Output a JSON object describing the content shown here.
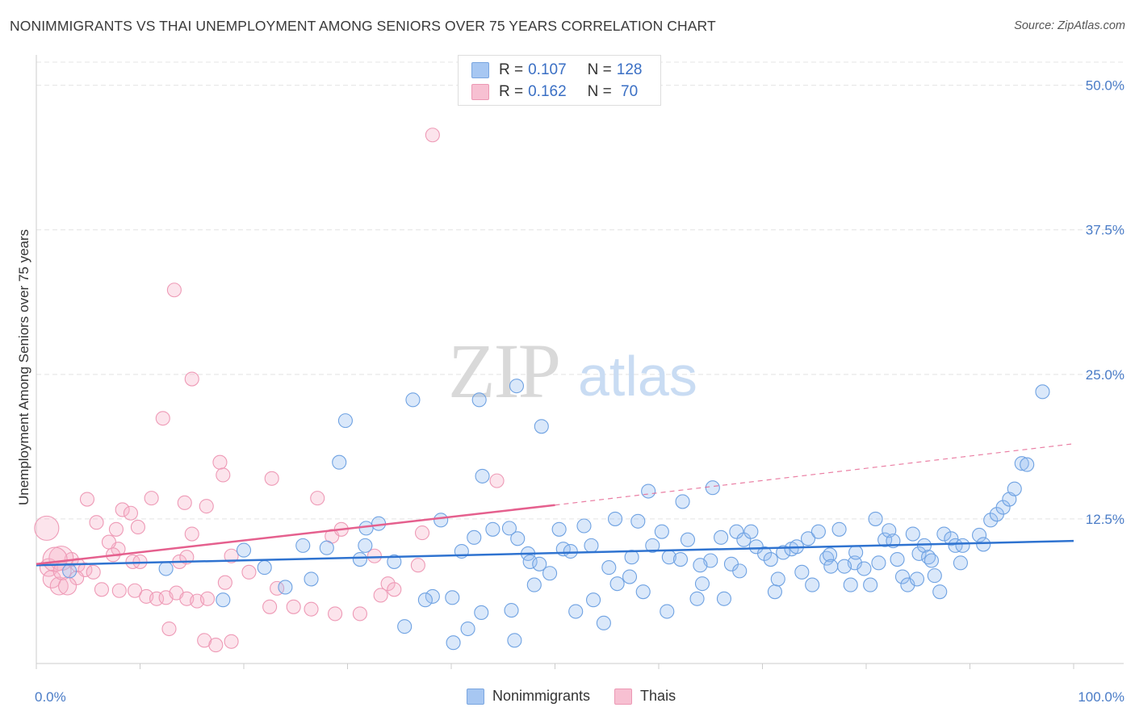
{
  "title": "NONIMMIGRANTS VS THAI UNEMPLOYMENT AMONG SENIORS OVER 75 YEARS CORRELATION CHART",
  "source": "Source: ZipAtlas.com",
  "watermark": {
    "zip": "ZIP",
    "atlas": "atlas"
  },
  "legend": {
    "rows": [
      {
        "r_label": "R = ",
        "r_value": "0.107",
        "n_label": "N = ",
        "n_value": "128",
        "color": "#a7c7f2",
        "border": "#7aa6e0"
      },
      {
        "r_label": "R = ",
        "r_value": "0.162",
        "n_label": "N = ",
        "n_value": " 70",
        "color": "#f7c0d2",
        "border": "#ec98b4"
      }
    ]
  },
  "bottom_legend": {
    "nonimmigrants": "Nonimmigrants",
    "thais": "Thais"
  },
  "colors": {
    "blue_fill": "rgba(150,190,240,0.35)",
    "blue_stroke": "#6fa2e2",
    "blue_line": "#2f73d0",
    "pink_fill": "rgba(246,178,200,0.35)",
    "pink_stroke": "#ee9ab6",
    "pink_line": "#e5608e",
    "grid": "#e4e4e4",
    "tick": "#4a7cc7"
  },
  "chart_data": {
    "type": "scatter",
    "title": "NONIMMIGRANTS VS THAI UNEMPLOYMENT AMONG SENIORS OVER 75 YEARS CORRELATION CHART",
    "xlabel": "",
    "ylabel": "Unemployment Among Seniors over 75 years",
    "xlim": [
      0,
      100
    ],
    "ylim": [
      0,
      52
    ],
    "x_tick_labels": [
      "0.0%",
      "100.0%"
    ],
    "y_ticks": [
      12.5,
      25.0,
      37.5,
      50.0
    ],
    "y_tick_labels": [
      "12.5%",
      "25.0%",
      "37.5%",
      "50.0%"
    ],
    "grid": true,
    "legend_position": "top-center",
    "series": [
      {
        "name": "Nonimmigrants",
        "r": 0.107,
        "n": 128,
        "trend": {
          "x0": 0,
          "y0": 8.5,
          "x1": 100,
          "y1": 10.6
        },
        "points": [
          [
            25.7,
            10.2
          ],
          [
            29.2,
            17.4
          ],
          [
            29.8,
            21
          ],
          [
            31.8,
            11.7
          ],
          [
            31.2,
            9
          ],
          [
            31.7,
            10.2
          ],
          [
            36.3,
            22.8
          ],
          [
            42.7,
            22.8
          ],
          [
            46.3,
            24
          ],
          [
            43.0,
            16.2
          ],
          [
            48.7,
            20.5
          ],
          [
            35.5,
            3.2
          ],
          [
            40.2,
            1.8
          ],
          [
            41.6,
            3
          ],
          [
            42.9,
            4.4
          ],
          [
            45.8,
            4.6
          ],
          [
            46.1,
            2
          ],
          [
            38.2,
            5.8
          ],
          [
            40.1,
            5.7
          ],
          [
            41.0,
            9.7
          ],
          [
            42.2,
            10.9
          ],
          [
            45.6,
            11.7
          ],
          [
            46.4,
            10.8
          ],
          [
            47.4,
            9.5
          ],
          [
            47.6,
            8.8
          ],
          [
            48.0,
            6.8
          ],
          [
            48.5,
            8.6
          ],
          [
            50.4,
            11.6
          ],
          [
            50.8,
            9.9
          ],
          [
            51.5,
            9.7
          ],
          [
            53.5,
            10.2
          ],
          [
            52.8,
            11.9
          ],
          [
            53.7,
            5.5
          ],
          [
            54.7,
            3.5
          ],
          [
            55.2,
            8.3
          ],
          [
            55.8,
            12.5
          ],
          [
            57.2,
            7.5
          ],
          [
            57.4,
            9.2
          ],
          [
            58.0,
            12.3
          ],
          [
            58.5,
            6.2
          ],
          [
            59.0,
            14.9
          ],
          [
            59.4,
            10.2
          ],
          [
            60.3,
            11.4
          ],
          [
            61.0,
            9.2
          ],
          [
            62.3,
            14
          ],
          [
            62.1,
            9
          ],
          [
            62.8,
            10.7
          ],
          [
            63.7,
            5.6
          ],
          [
            64.2,
            6.9
          ],
          [
            65.0,
            8.9
          ],
          [
            65.2,
            15.2
          ],
          [
            66.0,
            10.9
          ],
          [
            66.3,
            5.6
          ],
          [
            67.0,
            8.6
          ],
          [
            67.5,
            11.4
          ],
          [
            68.2,
            10.7
          ],
          [
            68.9,
            11.4
          ],
          [
            69.4,
            10.1
          ],
          [
            70.2,
            9.5
          ],
          [
            70.8,
            9.0
          ],
          [
            71.2,
            6.2
          ],
          [
            72.0,
            9.6
          ],
          [
            72.8,
            9.9
          ],
          [
            73.3,
            10.1
          ],
          [
            74.4,
            10.8
          ],
          [
            74.8,
            6.8
          ],
          [
            75.4,
            11.4
          ],
          [
            76.2,
            9.1
          ],
          [
            76.5,
            9.4
          ],
          [
            76.6,
            8.4
          ],
          [
            77.4,
            11.6
          ],
          [
            78.5,
            6.8
          ],
          [
            78.9,
            8.7
          ],
          [
            79.0,
            9.6
          ],
          [
            79.8,
            8.2
          ],
          [
            80.4,
            6.8
          ],
          [
            80.9,
            12.5
          ],
          [
            81.8,
            10.7
          ],
          [
            82.2,
            11.5
          ],
          [
            82.6,
            10.6
          ],
          [
            83.5,
            7.5
          ],
          [
            84.0,
            6.8
          ],
          [
            84.5,
            11.2
          ],
          [
            85.1,
            9.5
          ],
          [
            85.6,
            10.2
          ],
          [
            86.0,
            9.2
          ],
          [
            86.3,
            8.9
          ],
          [
            86.6,
            7.6
          ],
          [
            87.5,
            11.2
          ],
          [
            88.2,
            10.8
          ],
          [
            88.6,
            10.2
          ],
          [
            89.1,
            8.7
          ],
          [
            89.3,
            10.2
          ],
          [
            90.9,
            11.1
          ],
          [
            91.3,
            10.3
          ],
          [
            92.0,
            12.4
          ],
          [
            92.6,
            12.9
          ],
          [
            93.2,
            13.5
          ],
          [
            93.8,
            14.2
          ],
          [
            94.3,
            15.1
          ],
          [
            95.0,
            17.3
          ],
          [
            95.5,
            17.2
          ],
          [
            97.0,
            23.5
          ],
          [
            3.2,
            8
          ],
          [
            12.5,
            8.2
          ],
          [
            18.0,
            5.5
          ],
          [
            20.0,
            9.8
          ],
          [
            22.0,
            8.3
          ],
          [
            24.0,
            6.6
          ],
          [
            26.5,
            7.3
          ],
          [
            28.0,
            10.0
          ],
          [
            33.0,
            12.1
          ],
          [
            34.5,
            8.8
          ],
          [
            37.5,
            5.5
          ],
          [
            39.0,
            12.4
          ],
          [
            44.0,
            11.6
          ],
          [
            49.5,
            7.8
          ],
          [
            52.0,
            4.5
          ],
          [
            56.0,
            6.9
          ],
          [
            60.8,
            4.5
          ],
          [
            64.0,
            8.5
          ],
          [
            67.8,
            8.0
          ],
          [
            71.5,
            7.3
          ],
          [
            73.8,
            7.9
          ],
          [
            77.9,
            8.4
          ],
          [
            81.2,
            8.7
          ],
          [
            83.0,
            9.0
          ],
          [
            84.9,
            7.3
          ],
          [
            87.1,
            6.2
          ]
        ]
      },
      {
        "name": "Thais",
        "r": 0.162,
        "n": 70,
        "trend": {
          "x0": 0,
          "y0": 8.6,
          "x1": 50,
          "y1": 13.7,
          "dash_x1": 100,
          "dash_y1": 19.0
        },
        "points": [
          [
            38.2,
            45.7
          ],
          [
            13.3,
            32.3
          ],
          [
            15.0,
            24.6
          ],
          [
            12.2,
            21.2
          ],
          [
            17.7,
            17.4
          ],
          [
            18.0,
            16.3
          ],
          [
            22.7,
            16.0
          ],
          [
            44.4,
            15.8
          ],
          [
            27.1,
            14.3
          ],
          [
            4.9,
            14.2
          ],
          [
            11.1,
            14.3
          ],
          [
            14.3,
            13.9
          ],
          [
            16.4,
            13.6
          ],
          [
            8.3,
            13.3
          ],
          [
            9.1,
            13.0
          ],
          [
            7.9,
            9.9
          ],
          [
            9.8,
            11.8
          ],
          [
            7.7,
            11.6
          ],
          [
            15.0,
            11.2
          ],
          [
            28.5,
            11.0
          ],
          [
            37.2,
            11.3
          ],
          [
            7.0,
            10.5
          ],
          [
            7.4,
            9.4
          ],
          [
            3.4,
            9.0
          ],
          [
            4.0,
            8.5
          ],
          [
            4.7,
            8.1
          ],
          [
            5.5,
            7.9
          ],
          [
            1.2,
            8.3
          ],
          [
            2.4,
            9.1
          ],
          [
            1.5,
            7.3
          ],
          [
            6.3,
            6.4
          ],
          [
            8.0,
            6.3
          ],
          [
            9.5,
            6.3
          ],
          [
            10.6,
            5.8
          ],
          [
            11.6,
            5.6
          ],
          [
            12.5,
            5.7
          ],
          [
            13.5,
            6.1
          ],
          [
            14.5,
            5.6
          ],
          [
            15.5,
            5.4
          ],
          [
            16.5,
            5.6
          ],
          [
            18.2,
            7.0
          ],
          [
            20.5,
            7.9
          ],
          [
            23.2,
            6.5
          ],
          [
            24.8,
            4.9
          ],
          [
            26.5,
            4.7
          ],
          [
            28.8,
            4.3
          ],
          [
            31.2,
            4.3
          ],
          [
            33.2,
            5.9
          ],
          [
            33.9,
            6.9
          ],
          [
            34.5,
            6.4
          ],
          [
            12.8,
            3.0
          ],
          [
            16.2,
            2.0
          ],
          [
            17.3,
            1.6
          ],
          [
            18.8,
            1.9
          ],
          [
            9.3,
            8.8
          ],
          [
            10.0,
            8.8
          ],
          [
            13.8,
            8.8
          ],
          [
            14.5,
            9.2
          ],
          [
            18.8,
            9.3
          ],
          [
            22.5,
            4.9
          ],
          [
            29.4,
            11.6
          ],
          [
            32.6,
            9.3
          ],
          [
            36.8,
            8.5
          ],
          [
            2.2,
            6.7
          ],
          [
            3.9,
            7.4
          ],
          [
            1.8,
            9.0
          ],
          [
            1.0,
            11.7
          ],
          [
            2.5,
            8.0
          ],
          [
            3.0,
            6.7
          ],
          [
            5.8,
            12.2
          ]
        ]
      }
    ]
  }
}
